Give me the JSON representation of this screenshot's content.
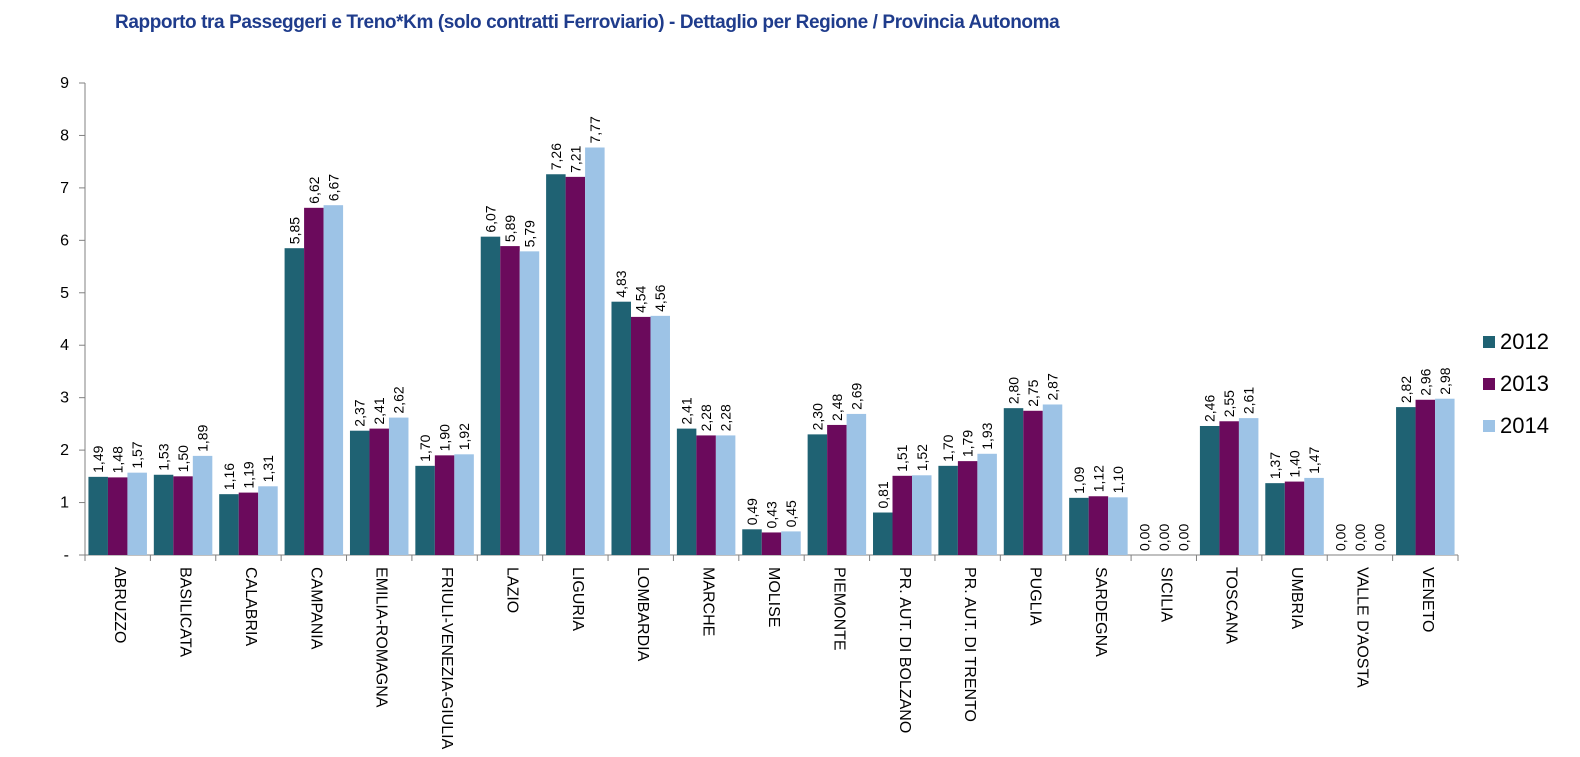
{
  "chart_data": {
    "type": "bar",
    "title": "Rapporto tra Passeggeri e Treno*Km (solo contratti Ferroviario) - Dettaglio per Regione /  Provincia Autonoma",
    "categories": [
      "ABRUZZO",
      "BASILICATA",
      "CALABRIA",
      "CAMPANIA",
      "EMILIA-ROMAGNA",
      "FRIULI-VENEZIA-GIULIA",
      "LAZIO",
      "LIGURIA",
      "LOMBARDIA",
      "MARCHE",
      "MOLISE",
      "PIEMONTE",
      "PR. AUT. DI BOLZANO",
      "PR. AUT. DI TRENTO",
      "PUGLIA",
      "SARDEGNA",
      "SICILIA",
      "TOSCANA",
      "UMBRIA",
      "VALLE D'AOSTA",
      "VENETO"
    ],
    "series": [
      {
        "name": "2012",
        "color": "#1f6273",
        "values": [
          1.49,
          1.53,
          1.16,
          5.85,
          2.37,
          1.7,
          6.07,
          7.26,
          4.83,
          2.41,
          0.49,
          2.3,
          0.81,
          1.7,
          2.8,
          1.09,
          0,
          2.46,
          1.37,
          0,
          2.82
        ],
        "value_labels": [
          "1,49",
          "1,53",
          "1,16",
          "5,85",
          "2,37",
          "1,70",
          "6,07",
          "7,26",
          "4,83",
          "2,41",
          "0,49",
          "2,30",
          "0,81",
          "1,70",
          "2,80",
          "1,09",
          "0,00",
          "2,46",
          "1,37",
          "0,00",
          "2,82"
        ]
      },
      {
        "name": "2013",
        "color": "#6b0a5c",
        "values": [
          1.48,
          1.5,
          1.19,
          6.62,
          2.41,
          1.9,
          5.89,
          7.21,
          4.54,
          2.28,
          0.43,
          2.48,
          1.51,
          1.79,
          2.75,
          1.12,
          0,
          2.55,
          1.4,
          0,
          2.96
        ],
        "value_labels": [
          "1,48",
          "1,50",
          "1,19",
          "6,62",
          "2,41",
          "1,90",
          "5,89",
          "7,21",
          "4,54",
          "2,28",
          "0,43",
          "2,48",
          "1,51",
          "1,79",
          "2,75",
          "1,12",
          "0,00",
          "2,55",
          "1,40",
          "0,00",
          "2,96"
        ]
      },
      {
        "name": "2014",
        "color": "#9dc3e6",
        "values": [
          1.57,
          1.89,
          1.31,
          6.67,
          2.62,
          1.92,
          5.79,
          7.77,
          4.56,
          2.28,
          0.45,
          2.69,
          1.52,
          1.93,
          2.87,
          1.1,
          0,
          2.61,
          1.47,
          0,
          2.98
        ],
        "value_labels": [
          "1,57",
          "1,89",
          "1,31",
          "6,67",
          "2,62",
          "1,92",
          "5,79",
          "7,77",
          "4,56",
          "2,28",
          "0,45",
          "2,69",
          "1,52",
          "1,93",
          "2,87",
          "1,10",
          "0,00",
          "2,61",
          "1,47",
          "0,00",
          "2,98"
        ]
      }
    ],
    "ylim": [
      0,
      9
    ],
    "yticks": [
      {
        "value": 0,
        "label": "-"
      },
      1,
      2,
      3,
      4,
      5,
      6,
      7,
      8,
      9
    ],
    "legend": "right",
    "grid": false
  }
}
